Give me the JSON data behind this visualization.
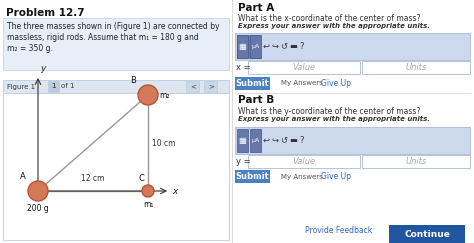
{
  "title": "Problem 12.7",
  "problem_text_line1": "The three masses shown in (Figure 1) are connected by",
  "problem_text_line2": "massless, rigid rods. Assume that m₁ = 180 g and",
  "problem_text_line3": "m₂ = 350 g.",
  "figure_label": "Figure 1",
  "figure_of": "of 1",
  "part_a_title": "Part A",
  "part_a_question": "What is the x-coordinate of the center of mass?",
  "part_a_instruction": "Express your answer with the appropriate units.",
  "part_b_title": "Part B",
  "part_b_question": "What is the y-coordinate of the center of mass?",
  "part_b_instruction": "Express your answer with the appropriate units.",
  "x_label": "x =",
  "y_label": "y =",
  "value_placeholder": "Value",
  "units_placeholder": "Units",
  "submit_text": "Submit",
  "my_answers_text": "My Answers",
  "give_up_text": "Give Up",
  "provide_feedback_text": "Provide Feedback",
  "continue_text": "Continue",
  "label_A": "A",
  "label_B": "B",
  "label_C": "C",
  "mass_A_label": "200 g",
  "mass_B_label": "m₂",
  "mass_C_label": "m₁",
  "dim_horizontal": "12 cm",
  "dim_vertical": "10 cm",
  "x_axis_label": "x",
  "y_axis_label": "y",
  "ball_color": "#d4785a",
  "ball_edge_color": "#b55535",
  "rod_color": "#999999",
  "bg_color": "#ffffff",
  "left_panel_bg": "#ffffff",
  "prob_box_bg": "#e8eef8",
  "prob_box_border": "#c8d4e8",
  "fig_header_bg": "#dde6f0",
  "fig_header_border": "#b8cce0",
  "fig_area_bg": "#ffffff",
  "fig_area_border": "#c0ccd8",
  "toolbar_bg": "#ccd8ee",
  "toolbar_border": "#aabbd8",
  "input_bg": "#ffffff",
  "input_border": "#aabbcc",
  "submit_bg": "#4a80c4",
  "submit_text_color": "#ffffff",
  "continue_bg": "#2255a0",
  "give_up_color": "#3366cc",
  "provide_feedback_color": "#3366cc",
  "right_border_color": "#dddddd",
  "page_btn_bg": "#b8ccdd",
  "nav_btn_bg": "#c8d8e8"
}
